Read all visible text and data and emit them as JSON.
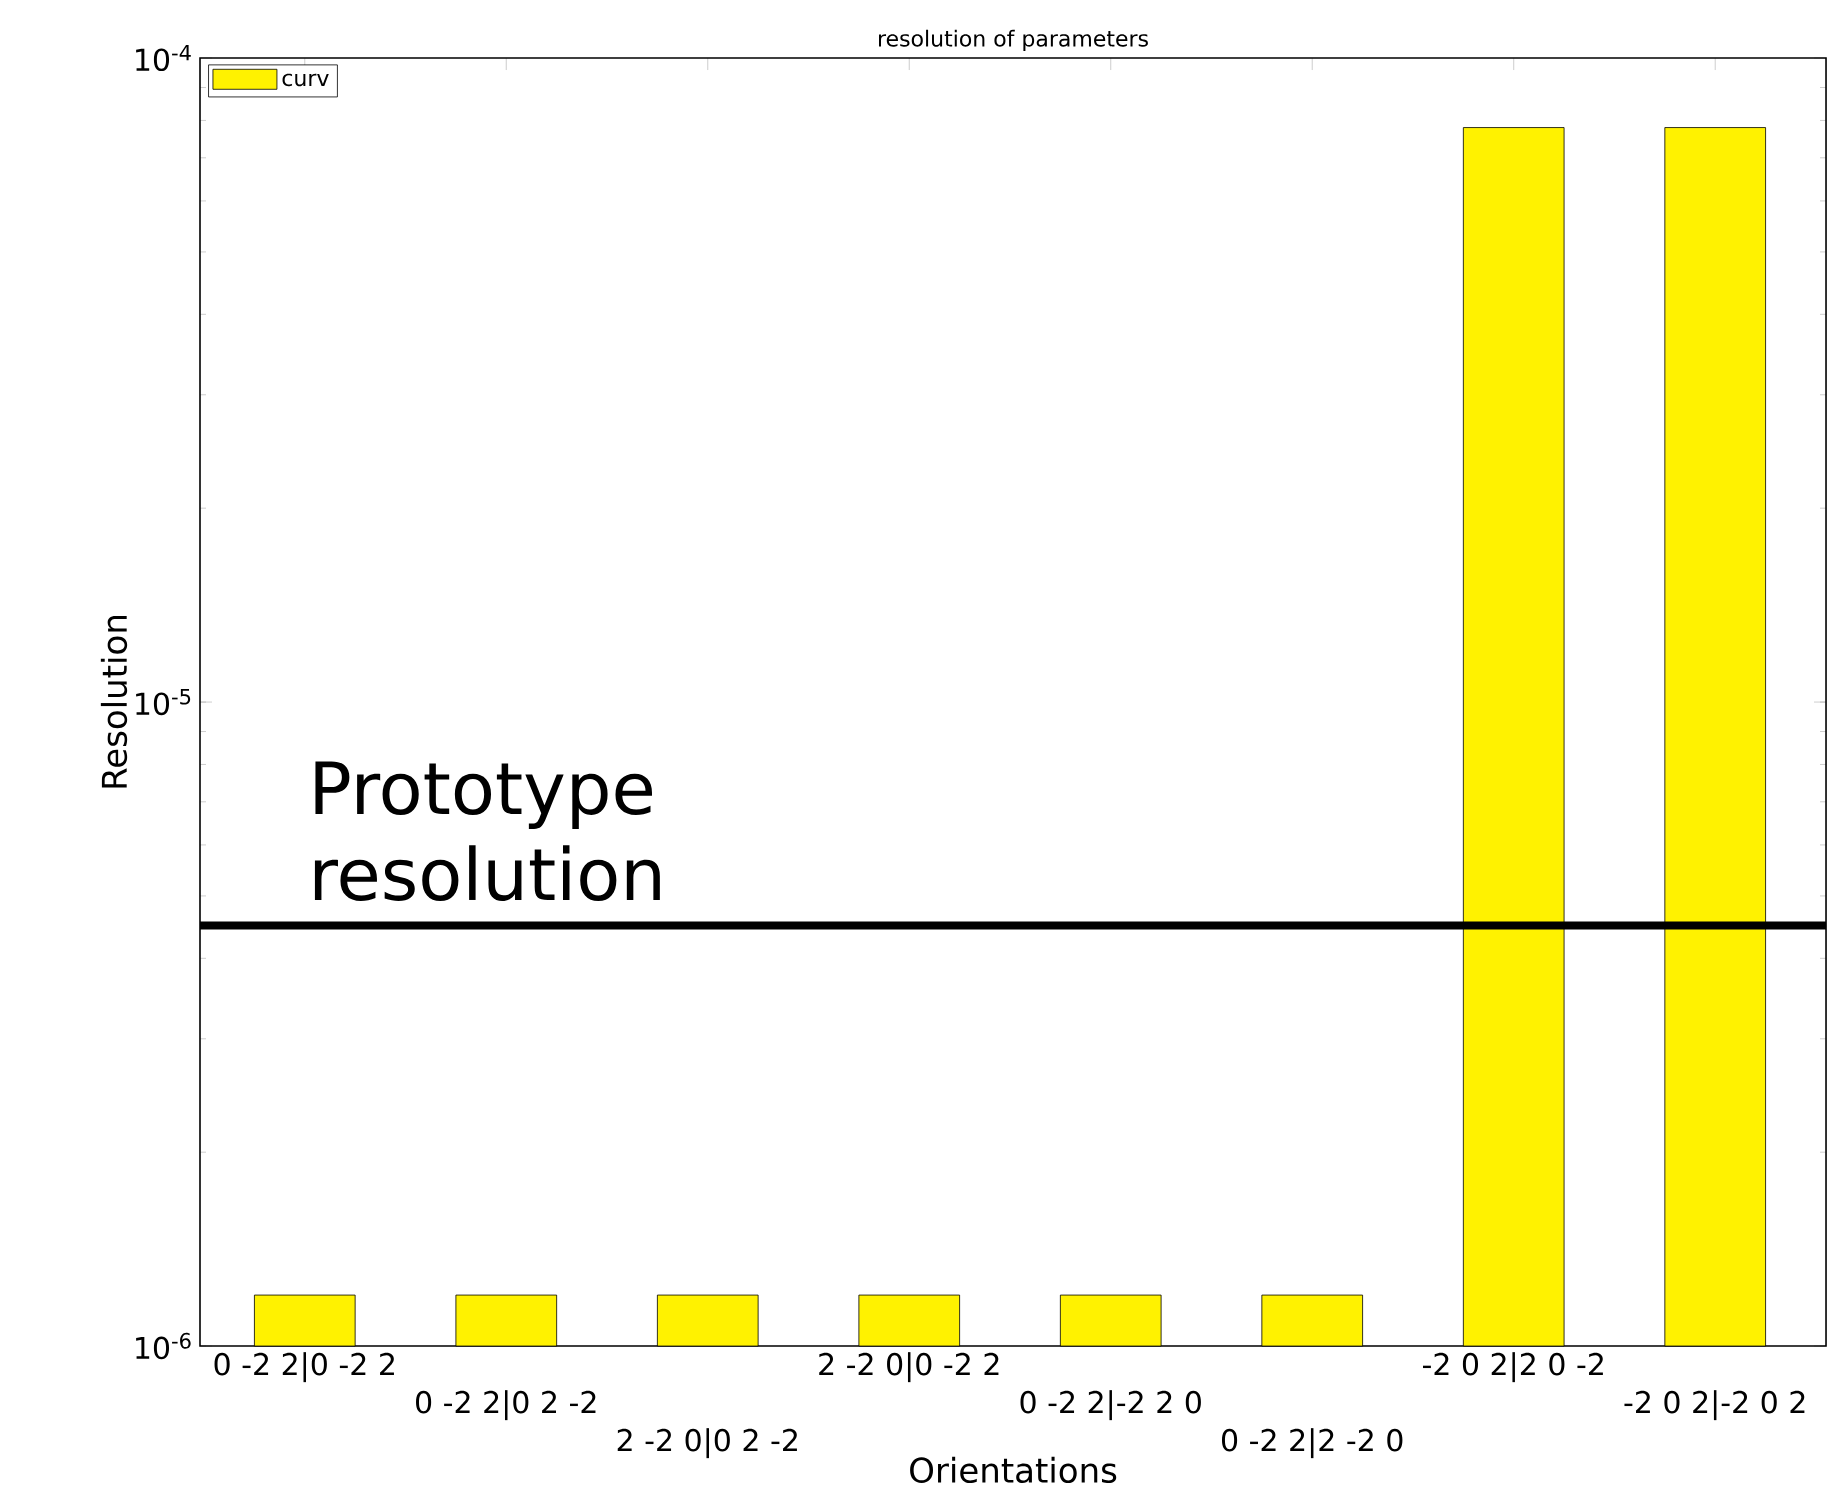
{
  "chart_data": {
    "type": "bar",
    "title": "resolution of parameters",
    "xlabel": "Orientations",
    "ylabel": "Resolution",
    "categories": [
      "0 -2 2|0 -2 2",
      "0 -2 2|0 2 -2",
      "2 -2 0|0 2 -2",
      "2 -2 0|0 -2 2",
      "0 -2 2|-2 2 0",
      "0 -2 2|2 -2 0",
      "-2 0 2|2 0 -2",
      "-2 0 2|-2 0 2"
    ],
    "series": [
      {
        "name": "curv",
        "color": "#fff200",
        "values": [
          1.2e-06,
          1.2e-06,
          1.2e-06,
          1.2e-06,
          1.2e-06,
          1.2e-06,
          7.8e-05,
          7.8e-05
        ]
      }
    ],
    "log": "y",
    "ylim": [
      1e-06,
      0.0001
    ],
    "yticks": [
      {
        "value": 1e-06,
        "label": "10$^{-6}$"
      },
      {
        "value": 1e-05,
        "label": "10$^{-5}$"
      },
      {
        "value": 0.0001,
        "label": "10$^{-4}$"
      }
    ],
    "legend": "top left",
    "ref_lines": [
      {
        "axis": "y",
        "value": 4.5e-06,
        "label": "Prototype resolution",
        "color": "#000000"
      }
    ]
  }
}
